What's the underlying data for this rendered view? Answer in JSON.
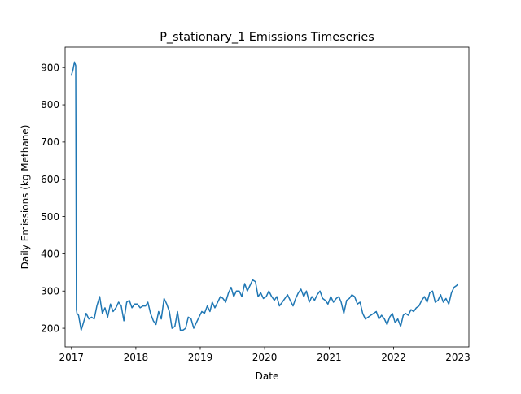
{
  "chart_data": {
    "type": "line",
    "title": "P_stationary_1 Emissions Timeseries",
    "xlabel": "Date",
    "ylabel": "Daily Emissions (kg Methane)",
    "x_ticks": [
      "2017",
      "2018",
      "2019",
      "2020",
      "2021",
      "2022",
      "2023"
    ],
    "y_ticks": [
      "200",
      "300",
      "400",
      "500",
      "600",
      "700",
      "800",
      "900"
    ],
    "xlim": [
      "2016-11-26",
      "2023-03-04"
    ],
    "ylim": [
      150,
      955
    ],
    "grid": false,
    "series": [
      {
        "color": "#1f77b4",
        "x": [
          "2017-01-01",
          "2017-01-10",
          "2017-01-18",
          "2017-01-25",
          "2017-01-29",
          "2017-02-01",
          "2017-02-10",
          "2017-02-25",
          "2017-03-10",
          "2017-03-25",
          "2017-04-10",
          "2017-04-25",
          "2017-05-10",
          "2017-05-25",
          "2017-06-10",
          "2017-06-25",
          "2017-07-10",
          "2017-07-25",
          "2017-08-10",
          "2017-08-25",
          "2017-09-10",
          "2017-09-25",
          "2017-10-10",
          "2017-10-25",
          "2017-11-10",
          "2017-11-25",
          "2017-12-10",
          "2017-12-25",
          "2018-01-10",
          "2018-01-25",
          "2018-02-10",
          "2018-02-25",
          "2018-03-10",
          "2018-03-25",
          "2018-04-10",
          "2018-04-25",
          "2018-05-10",
          "2018-05-25",
          "2018-06-10",
          "2018-06-25",
          "2018-07-10",
          "2018-07-25",
          "2018-08-10",
          "2018-08-25",
          "2018-09-10",
          "2018-09-25",
          "2018-10-10",
          "2018-10-25",
          "2018-11-10",
          "2018-11-25",
          "2018-12-10",
          "2018-12-25",
          "2019-01-10",
          "2019-01-25",
          "2019-02-10",
          "2019-02-25",
          "2019-03-10",
          "2019-03-25",
          "2019-04-10",
          "2019-04-25",
          "2019-05-10",
          "2019-05-25",
          "2019-06-10",
          "2019-06-25",
          "2019-07-10",
          "2019-07-25",
          "2019-08-10",
          "2019-08-25",
          "2019-09-10",
          "2019-09-25",
          "2019-10-10",
          "2019-10-25",
          "2019-11-10",
          "2019-11-25",
          "2019-12-10",
          "2019-12-25",
          "2020-01-10",
          "2020-01-25",
          "2020-02-10",
          "2020-02-25",
          "2020-03-10",
          "2020-03-25",
          "2020-04-10",
          "2020-04-25",
          "2020-05-10",
          "2020-05-25",
          "2020-06-10",
          "2020-06-25",
          "2020-07-10",
          "2020-07-25",
          "2020-08-10",
          "2020-08-25",
          "2020-09-10",
          "2020-09-25",
          "2020-10-10",
          "2020-10-25",
          "2020-11-10",
          "2020-11-25",
          "2020-12-10",
          "2020-12-25",
          "2021-01-10",
          "2021-01-25",
          "2021-02-10",
          "2021-02-25",
          "2021-03-10",
          "2021-03-25",
          "2021-04-10",
          "2021-04-25",
          "2021-05-10",
          "2021-05-25",
          "2021-06-10",
          "2021-06-25",
          "2021-07-10",
          "2021-07-25",
          "2021-08-10",
          "2021-08-25",
          "2021-09-10",
          "2021-09-25",
          "2021-10-10",
          "2021-10-25",
          "2021-11-10",
          "2021-11-25",
          "2021-12-10",
          "2021-12-25",
          "2022-01-10",
          "2022-01-25",
          "2022-02-10",
          "2022-02-25",
          "2022-03-10",
          "2022-03-25",
          "2022-04-10",
          "2022-04-25",
          "2022-05-10",
          "2022-05-25",
          "2022-06-10",
          "2022-06-25",
          "2022-07-10",
          "2022-07-25",
          "2022-08-10",
          "2022-08-25",
          "2022-09-10",
          "2022-09-25",
          "2022-10-10",
          "2022-10-25",
          "2022-11-10",
          "2022-11-25",
          "2022-12-10",
          "2022-12-25",
          "2023-01-01"
        ],
        "y": [
          880,
          895,
          915,
          905,
          250,
          240,
          235,
          195,
          215,
          240,
          225,
          230,
          225,
          260,
          285,
          240,
          255,
          230,
          265,
          245,
          255,
          270,
          260,
          220,
          270,
          275,
          255,
          265,
          265,
          255,
          260,
          260,
          270,
          240,
          220,
          210,
          245,
          225,
          280,
          265,
          245,
          200,
          205,
          245,
          195,
          195,
          200,
          230,
          225,
          200,
          215,
          230,
          245,
          240,
          260,
          245,
          270,
          255,
          270,
          285,
          280,
          270,
          295,
          310,
          285,
          300,
          300,
          285,
          320,
          300,
          315,
          330,
          325,
          285,
          295,
          280,
          285,
          300,
          285,
          275,
          285,
          260,
          270,
          280,
          290,
          275,
          260,
          280,
          295,
          305,
          285,
          300,
          270,
          285,
          275,
          290,
          300,
          280,
          275,
          265,
          285,
          270,
          280,
          285,
          270,
          240,
          275,
          280,
          290,
          285,
          265,
          270,
          240,
          225,
          230,
          235,
          240,
          245,
          225,
          235,
          225,
          210,
          230,
          240,
          215,
          225,
          205,
          235,
          240,
          235,
          250,
          245,
          255,
          260,
          275,
          285,
          270,
          295,
          300,
          270,
          275,
          290,
          270,
          280,
          265,
          295,
          310,
          315,
          320
        ]
      }
    ]
  }
}
